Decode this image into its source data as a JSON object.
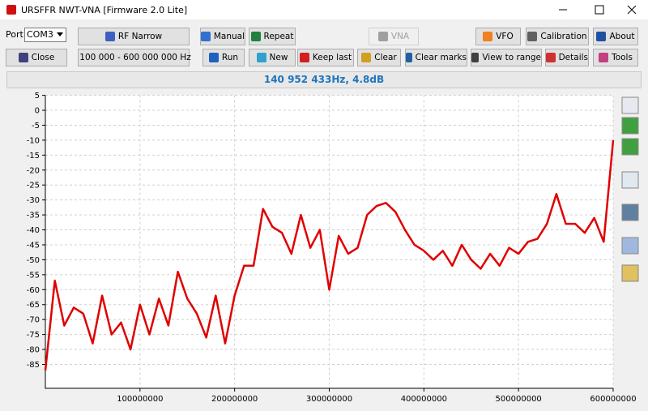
{
  "window": {
    "title": "URSFFR NWT-VNA [Firmware 2.0 Lite]"
  },
  "toolbar": {
    "port_label": "Port",
    "port_value": "COM3",
    "row1": [
      "RF Narrow",
      "Manual",
      "Repeat",
      "VNA",
      "VFO",
      "Calibration",
      "About"
    ],
    "row2": [
      "Close",
      "100 000 - 600 000 000 Hz",
      "Run",
      "New",
      "Keep last",
      "Clear",
      "Clear marks",
      "View to range",
      "Details",
      "Tools"
    ]
  },
  "status": "140 952 433Hz, 4.8dB",
  "chart_data": {
    "type": "line",
    "x": [
      0,
      10000000,
      20000000,
      30000000,
      40000000,
      50000000,
      60000000,
      70000000,
      80000000,
      90000000,
      100000000,
      110000000,
      120000000,
      130000000,
      140000000,
      150000000,
      160000000,
      170000000,
      180000000,
      190000000,
      200000000,
      210000000,
      220000000,
      230000000,
      240000000,
      250000000,
      260000000,
      270000000,
      280000000,
      290000000,
      300000000,
      310000000,
      320000000,
      330000000,
      340000000,
      350000000,
      360000000,
      370000000,
      380000000,
      390000000,
      400000000,
      410000000,
      420000000,
      430000000,
      440000000,
      450000000,
      460000000,
      470000000,
      480000000,
      490000000,
      500000000,
      510000000,
      520000000,
      530000000,
      540000000,
      550000000,
      560000000,
      570000000,
      580000000,
      590000000,
      600000000
    ],
    "series": [
      {
        "color": "#e00000",
        "values": [
          -87,
          -57,
          -72,
          -66,
          -68,
          -78,
          -62,
          -75,
          -71,
          -80,
          -65,
          -75,
          -63,
          -72,
          -54,
          -63,
          -68,
          -76,
          -62,
          -78,
          -62,
          -52,
          -52,
          -33,
          -39,
          -41,
          -48,
          -35,
          -46,
          -40,
          -60,
          -42,
          -48,
          -46,
          -35,
          -32,
          -31,
          -34,
          -40,
          -45,
          -47,
          -50,
          -47,
          -52,
          -45,
          -50,
          -53,
          -48,
          -52,
          -46,
          -48,
          -44,
          -43,
          -38,
          -28,
          -38,
          -38,
          -41,
          -36,
          -44,
          -10
        ]
      }
    ],
    "xlim": [
      0,
      600000000
    ],
    "ylim": [
      -93,
      5
    ],
    "xticks": [
      100000000,
      200000000,
      300000000,
      400000000,
      500000000,
      600000000
    ],
    "yticks": [
      5,
      0,
      -5,
      -10,
      -15,
      -20,
      -25,
      -30,
      -35,
      -40,
      -45,
      -50,
      -55,
      -60,
      -65,
      -70,
      -75,
      -80,
      -85
    ],
    "grid": true
  }
}
